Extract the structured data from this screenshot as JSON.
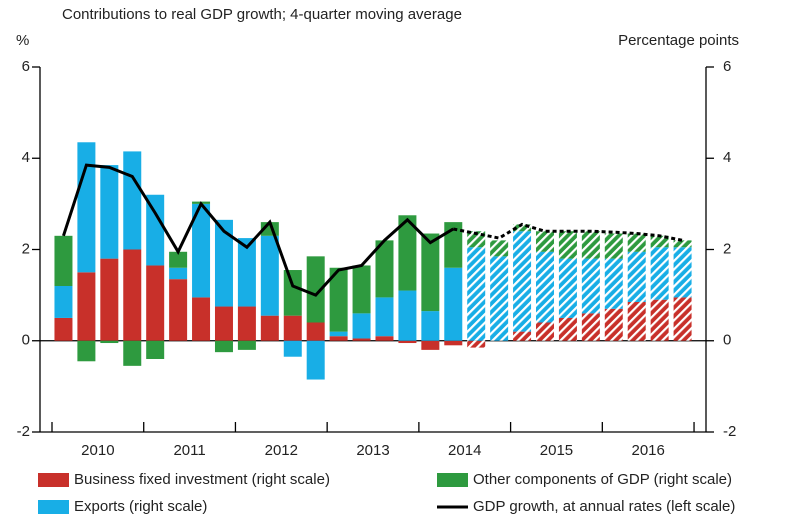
{
  "chart_data": {
    "type": "stacked-bar-line",
    "subtitle": "Contributions to real GDP growth; 4-quarter moving average",
    "y_label": "%",
    "y2_label": "Percentage points",
    "categories": [
      null,
      null,
      null,
      null,
      null,
      null,
      null,
      null,
      null,
      null,
      null,
      null,
      null,
      null,
      null,
      null,
      null,
      null,
      null,
      null,
      null,
      null,
      null,
      null,
      null,
      null,
      null,
      null
    ],
    "year_labels": [
      "2010",
      "2011",
      "2012",
      "2013",
      "2014",
      "2015",
      "2016"
    ],
    "projected": [
      false,
      false,
      false,
      false,
      false,
      false,
      false,
      false,
      false,
      false,
      false,
      false,
      false,
      false,
      false,
      false,
      false,
      false,
      true,
      true,
      true,
      true,
      true,
      true,
      true,
      true,
      true,
      true
    ],
    "ylim": [
      -2,
      6
    ],
    "yticks": [
      -2,
      0,
      2,
      4,
      6
    ],
    "y2lim": [
      -2,
      6
    ],
    "y2ticks": [
      -2,
      0,
      2,
      4,
      6
    ],
    "series": [
      {
        "name": "Business fixed investment (right scale)",
        "color": "#c8302a",
        "axis": "y2",
        "kind": "bar",
        "values": [
          0.5,
          1.5,
          1.8,
          2.0,
          1.65,
          1.35,
          0.95,
          0.75,
          0.75,
          0.55,
          0.55,
          0.4,
          0.1,
          0.05,
          0.1,
          -0.05,
          -0.2,
          -0.1,
          -0.15,
          0,
          0.2,
          0.4,
          0.5,
          0.6,
          0.7,
          0.85,
          0.9,
          0.95
        ]
      },
      {
        "name": "Exports (right scale)",
        "color": "#18aee6",
        "axis": "y2",
        "kind": "bar",
        "values": [
          0.7,
          2.85,
          2.05,
          2.15,
          1.55,
          0.25,
          2.05,
          1.9,
          1.5,
          1.75,
          -0.35,
          -0.85,
          0.1,
          0.55,
          0.85,
          1.1,
          0.65,
          1.6,
          2.05,
          1.85,
          2.2,
          1.55,
          1.3,
          1.2,
          1.1,
          1.1,
          1.15,
          1.1
        ]
      },
      {
        "name": "Other components of GDP (right scale)",
        "color": "#2e9a3f",
        "axis": "y2",
        "kind": "bar",
        "values": [
          1.1,
          -0.45,
          -0.05,
          -0.55,
          -0.4,
          0.35,
          0.05,
          -0.25,
          -0.2,
          0.3,
          1.0,
          1.45,
          1.4,
          1.05,
          1.25,
          1.65,
          1.7,
          1.0,
          0.35,
          0.35,
          0.15,
          0.45,
          0.6,
          0.6,
          0.55,
          0.4,
          0.25,
          0.15
        ]
      },
      {
        "name": "GDP growth, at annual rates (left scale)",
        "color": "#000000",
        "kind": "line",
        "values": [
          2.3,
          3.85,
          3.8,
          3.6,
          2.8,
          1.95,
          3.0,
          2.4,
          2.05,
          2.6,
          1.2,
          1.0,
          1.55,
          1.65,
          2.2,
          2.65,
          2.15,
          2.45,
          2.35,
          2.25,
          2.55,
          2.4,
          2.4,
          2.4,
          2.38,
          2.35,
          2.3,
          2.2
        ]
      }
    ]
  }
}
